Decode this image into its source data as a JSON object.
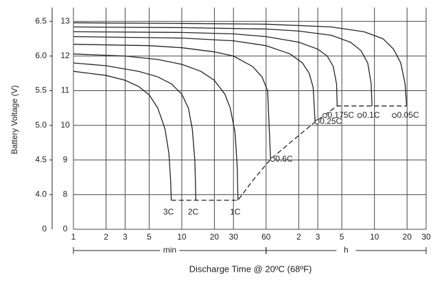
{
  "chart_data": {
    "type": "line",
    "y_label": "Battery Voltage (V)",
    "x_label": "Discharge Time @ 20ºC (68ºF)",
    "x_log": true,
    "grid": true,
    "xlim": [
      1,
      1800
    ],
    "xticks": [
      1,
      2,
      3,
      5,
      10,
      20,
      30,
      60,
      {
        "value": 120,
        "label": "2"
      },
      {
        "value": 180,
        "label": "3"
      },
      {
        "value": 300,
        "label": "5"
      },
      {
        "value": 600,
        "label": "10"
      },
      {
        "value": 1200,
        "label": "20"
      },
      {
        "value": 1800,
        "label": "30"
      }
    ],
    "x_units": [
      {
        "label": "min",
        "from": 1,
        "to": 60
      },
      {
        "label": "h",
        "from": 60,
        "to": 1800
      }
    ],
    "ylim": [
      3.5,
      6.7
    ],
    "yticks": [
      {
        "value": 6.5,
        "label": "6.5"
      },
      {
        "value": 6,
        "label": "6.0"
      },
      {
        "value": 5.5,
        "label": "5.5"
      },
      {
        "value": 5,
        "label": "5.0"
      },
      {
        "value": 4.5,
        "label": "4.5"
      },
      {
        "value": 4,
        "label": "4.0"
      }
    ],
    "y_break_label": "0",
    "y2lim": [
      7,
      13.4
    ],
    "y2ticks": [
      13,
      12,
      11,
      10,
      9,
      8
    ],
    "y2_break_label": "0",
    "series": [
      {
        "name": "3C",
        "color": "#222",
        "x": [
          1,
          2,
          3,
          4,
          5,
          6,
          7,
          7.6,
          7.9,
          8
        ],
        "values": [
          5.78,
          5.72,
          5.65,
          5.56,
          5.44,
          5.25,
          4.95,
          4.6,
          4.2,
          3.92
        ]
      },
      {
        "name": "2C",
        "color": "#222",
        "x": [
          1,
          2,
          4,
          6,
          8,
          10,
          11.5,
          12.5,
          13.2,
          13.5
        ],
        "values": [
          5.9,
          5.86,
          5.78,
          5.7,
          5.6,
          5.45,
          5.25,
          4.95,
          4.5,
          3.92
        ]
      },
      {
        "name": "1C",
        "color": "#222",
        "x": [
          1,
          3,
          6,
          10,
          15,
          20,
          25,
          28,
          31,
          32.5,
          33
        ],
        "values": [
          6.03,
          6.0,
          5.95,
          5.88,
          5.78,
          5.65,
          5.45,
          5.25,
          4.9,
          4.4,
          3.92
        ]
      },
      {
        "name": "0.6C",
        "color": "#222",
        "x": [
          1,
          5,
          10,
          20,
          30,
          45,
          55,
          62,
          66
        ],
        "values": [
          6.17,
          6.15,
          6.12,
          6.06,
          6.0,
          5.85,
          5.7,
          5.5,
          4.51
        ]
      },
      {
        "name": "0.25C",
        "color": "#222",
        "x": [
          1,
          10,
          30,
          60,
          100,
          130,
          150,
          163,
          170
        ],
        "values": [
          6.28,
          6.26,
          6.22,
          6.15,
          6.03,
          5.9,
          5.75,
          5.55,
          5.05
        ]
      },
      {
        "name": "0.175C",
        "color": "#222",
        "x": [
          1,
          10,
          30,
          60,
          120,
          180,
          220,
          250,
          268,
          272
        ],
        "values": [
          6.35,
          6.34,
          6.32,
          6.28,
          6.2,
          6.1,
          6.0,
          5.85,
          5.6,
          5.28
        ]
      },
      {
        "name": "0.1C",
        "color": "#222",
        "x": [
          1,
          10,
          60,
          120,
          240,
          360,
          450,
          520,
          560,
          570
        ],
        "values": [
          6.42,
          6.41,
          6.39,
          6.36,
          6.3,
          6.2,
          6.08,
          5.9,
          5.6,
          5.28
        ]
      },
      {
        "name": "0.05C",
        "color": "#222",
        "x": [
          1,
          10,
          60,
          240,
          480,
          720,
          900,
          1050,
          1150,
          1190
        ],
        "values": [
          6.48,
          6.47,
          6.46,
          6.42,
          6.35,
          6.25,
          6.1,
          5.9,
          5.6,
          5.28
        ]
      }
    ],
    "cutoff": {
      "color": "#222",
      "x": [
        8,
        33,
        45,
        66,
        100,
        170,
        272,
        400,
        570,
        1190
      ],
      "values": [
        3.92,
        3.92,
        4.2,
        4.51,
        4.75,
        5.05,
        5.28,
        5.28,
        5.28,
        5.28
      ]
    }
  }
}
